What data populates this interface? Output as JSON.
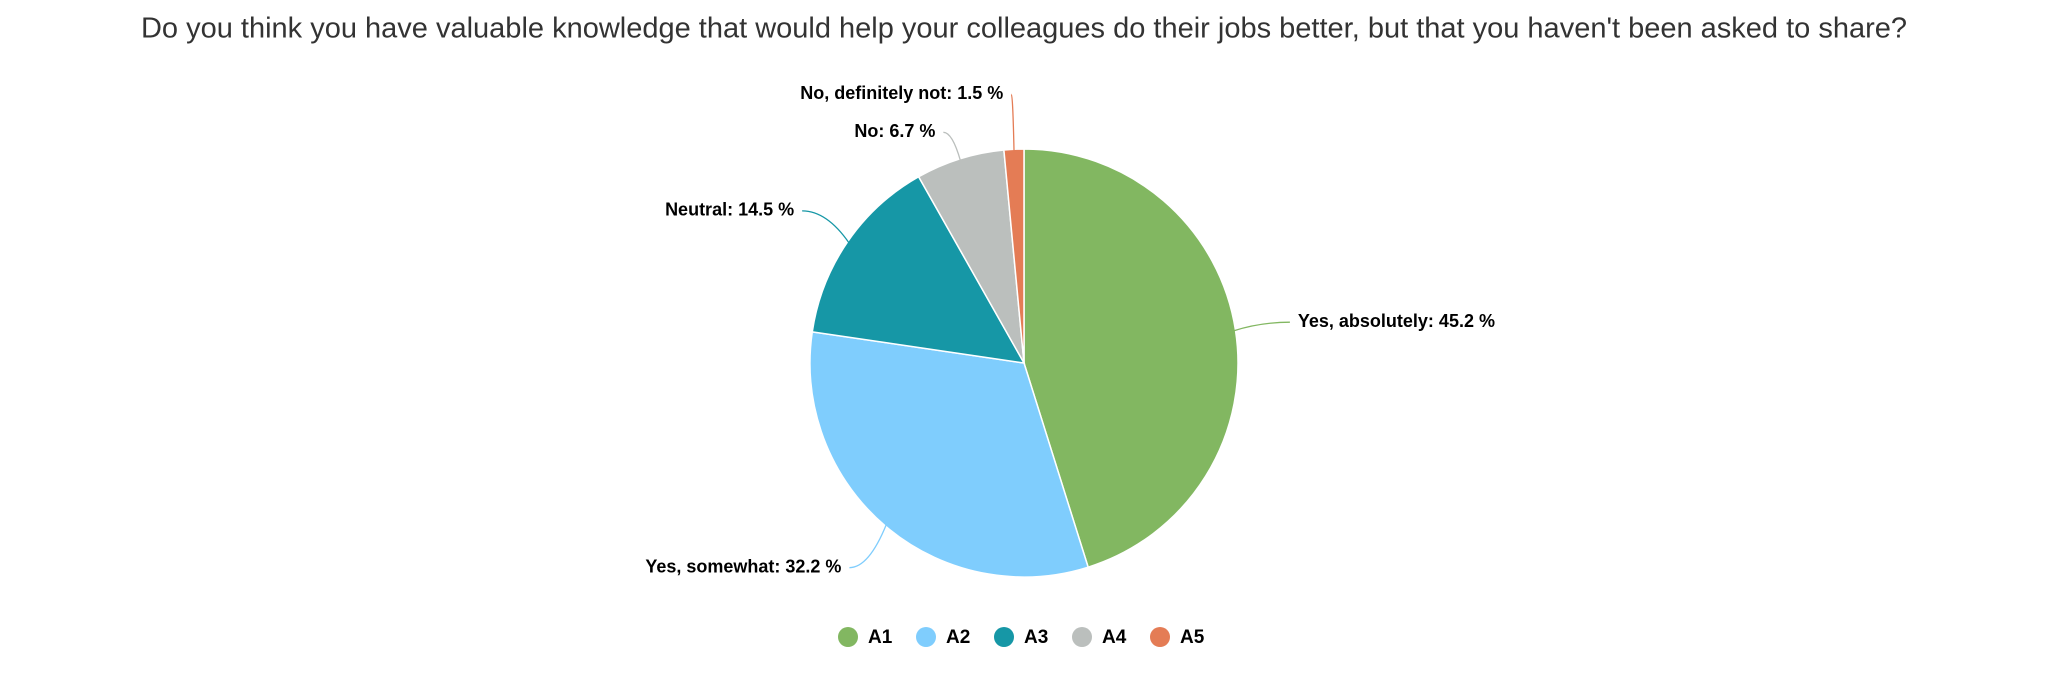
{
  "chart_data": {
    "type": "pie",
    "title": "Do you think you have valuable knowledge that would help your colleagues do their jobs better, but that you haven't been asked to share?",
    "categories": [
      "A1",
      "A2",
      "A3",
      "A4",
      "A5"
    ],
    "values": [
      45.2,
      32.2,
      14.5,
      6.7,
      1.5
    ],
    "value_labels": [
      "Yes, absolutely: 45.2 %",
      "Yes, somewhat: 32.2 %",
      "Neutral: 14.5 %",
      "No: 6.7 %",
      "No, definitely not: 1.5 %"
    ],
    "colors": [
      "#82b761",
      "#7fcdfd",
      "#1697a6",
      "#bbbfbd",
      "#e47c55"
    ]
  }
}
